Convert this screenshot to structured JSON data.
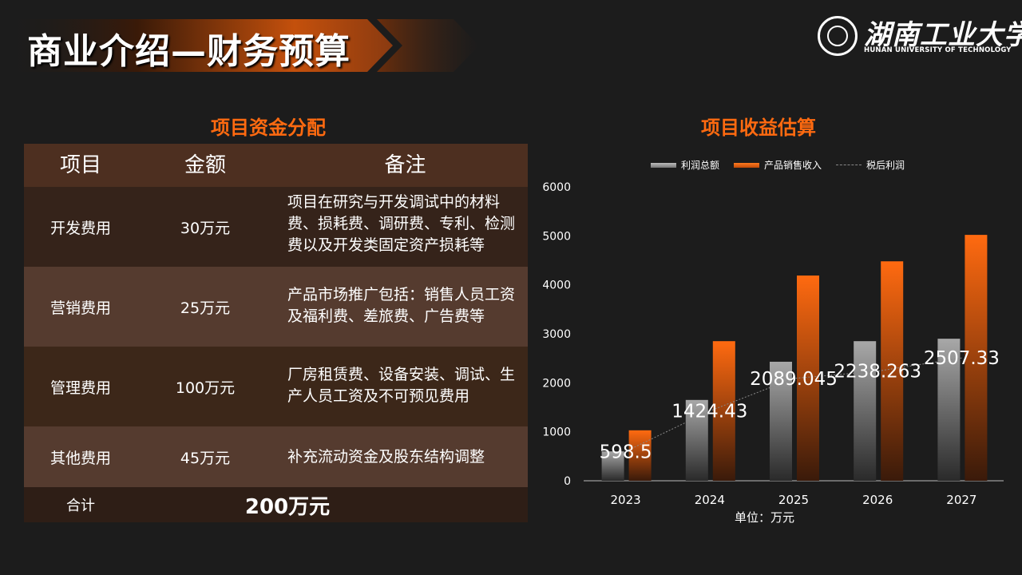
{
  "header": {
    "title": "商业介绍—财务预算",
    "logo_cn": "湖南工业大学",
    "logo_en": "HUNAN UNIVERSITY OF TECHNOLOGY"
  },
  "left_section": {
    "title": "项目资金分配",
    "columns": [
      "项目",
      "金额",
      "备注"
    ],
    "rows": [
      {
        "name": "开发费用",
        "amount": "30万元",
        "note": "项目在研究与开发调试中的材料费、损耗费、调研费、专利、检测费以及开发类固定资产损耗等"
      },
      {
        "name": "营销费用",
        "amount": "25万元",
        "note": "产品市场推广包括：销售人员工资及福利费、差旅费、广告费等"
      },
      {
        "name": "管理费用",
        "amount": "100万元",
        "note": "厂房租赁费、设备安装、调试、生产人员工资及不可预见费用"
      },
      {
        "name": "其他费用",
        "amount": "45万元",
        "note": "补充流动资金及股东结构调整"
      }
    ],
    "total_label": "合计",
    "total_value": "200万元"
  },
  "right_section": {
    "title": "项目收益估算",
    "unit": "单位：万元"
  },
  "chart_data": {
    "type": "bar",
    "categories": [
      "2023",
      "2024",
      "2025",
      "2026",
      "2027"
    ],
    "series": [
      {
        "name": "利润总额",
        "type": "bar",
        "values": [
          600,
          1650,
          2430,
          2850,
          2900
        ],
        "color": "#9a9a9a"
      },
      {
        "name": "产品销售收入",
        "type": "bar",
        "values": [
          1030,
          2850,
          4190,
          4480,
          5020
        ],
        "color": "#ff6a10"
      },
      {
        "name": "税后利润",
        "type": "line",
        "values": [
          598.5,
          1424.43,
          2089.045,
          2238.263,
          2507.33
        ],
        "labels": [
          "598.5",
          "1424.43",
          "2089.045",
          "2238.263",
          "2507.33"
        ],
        "color": "#888888"
      }
    ],
    "ylim": [
      0,
      6000
    ],
    "yticks": [
      "0",
      "1000",
      "2000",
      "3000",
      "4000",
      "5000",
      "6000"
    ],
    "legend": "top-center",
    "grid": false
  }
}
